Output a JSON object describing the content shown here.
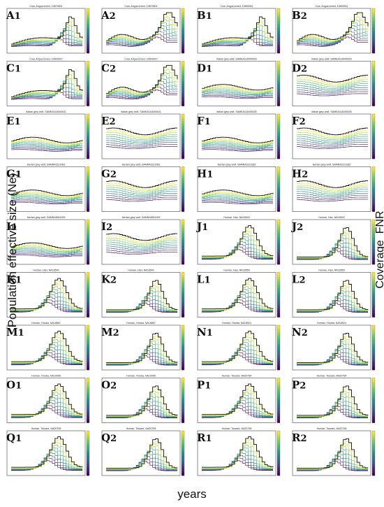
{
  "figure": {
    "y_axis_label": "Population effective size (Ne)",
    "x_axis_label": "years",
    "colorbar_label": "Coverage_FNR",
    "colormap": [
      "#440154",
      "#3b528b",
      "#21918c",
      "#5ec962",
      "#fde725"
    ],
    "black_curve_color": "#111111"
  },
  "chart_data": [
    {
      "panel": "A1",
      "title": "Cow, Angus breed, 19879801",
      "type": "line",
      "profile": "cow"
    },
    {
      "panel": "A2",
      "title": "Cow, Angus breed, 19879801",
      "type": "line",
      "profile": "cow2"
    },
    {
      "panel": "B1",
      "title": "Cow, Angus breed, 19890911",
      "type": "line",
      "profile": "cow"
    },
    {
      "panel": "B2",
      "title": "Cow, Angus breed, 19890911",
      "type": "line",
      "profile": "cow2"
    },
    {
      "panel": "C1",
      "title": "Cow, Angus breed, 19909927",
      "type": "line",
      "profile": "cow"
    },
    {
      "panel": "C2",
      "title": "Cow, Angus breed, 19909927",
      "type": "line",
      "profile": "cow2"
    },
    {
      "panel": "D1",
      "title": "Italian grey wolf, SAMEA116045429",
      "type": "line",
      "profile": "wolf"
    },
    {
      "panel": "D2",
      "title": "Italian grey wolf, SAMEA116045429",
      "type": "line",
      "profile": "wolf2"
    },
    {
      "panel": "E1",
      "title": "Italian grey wolf, SAMEA116045431",
      "type": "line",
      "profile": "wolf"
    },
    {
      "panel": "E2",
      "title": "Italian grey wolf, SAMEA116045431",
      "type": "line",
      "profile": "wolf2"
    },
    {
      "panel": "F1",
      "title": "Italian grey wolf, SAMEA116045435",
      "type": "line",
      "profile": "wolf"
    },
    {
      "panel": "F2",
      "title": "Italian grey wolf, SAMEA116045435",
      "type": "line",
      "profile": "wolf2"
    },
    {
      "panel": "G1",
      "title": "Iberian grey wolf, SAMN43221081",
      "type": "line",
      "profile": "wolf"
    },
    {
      "panel": "G2",
      "title": "Iberian grey wolf, SAMN43221081",
      "type": "line",
      "profile": "wolf2"
    },
    {
      "panel": "H1",
      "title": "Iberian grey wolf, SAMN43221082",
      "type": "line",
      "profile": "wolf"
    },
    {
      "panel": "H2",
      "title": "Iberian grey wolf, SAMN43221082",
      "type": "line",
      "profile": "wolf2"
    },
    {
      "panel": "I1",
      "title": "Iberian grey wolf, SAMN04851099",
      "type": "line",
      "profile": "wolf"
    },
    {
      "panel": "I2",
      "title": "Iberian grey wolf, SAMN04851099",
      "type": "line",
      "profile": "wolf2"
    },
    {
      "panel": "J1",
      "title": "Human, Han, NA18543",
      "type": "line",
      "profile": "human"
    },
    {
      "panel": "J2",
      "title": "Human, Han, NA18543",
      "type": "line",
      "profile": "human2"
    },
    {
      "panel": "K1",
      "title": "Human, Han, NA18544",
      "type": "line",
      "profile": "human"
    },
    {
      "panel": "K2",
      "title": "Human, Han, NA18544",
      "type": "line",
      "profile": "human2"
    },
    {
      "panel": "L1",
      "title": "Human, Han, NA18559",
      "type": "line",
      "profile": "human"
    },
    {
      "panel": "L2",
      "title": "Human, Han, NA18559",
      "type": "line",
      "profile": "human2"
    },
    {
      "panel": "M1",
      "title": "Human, Yoruba, NA18867",
      "type": "line",
      "profile": "human"
    },
    {
      "panel": "M2",
      "title": "Human, Yoruba, NA18867",
      "type": "line",
      "profile": "human2"
    },
    {
      "panel": "N1",
      "title": "Human, Yoruba, NA18924",
      "type": "line",
      "profile": "human"
    },
    {
      "panel": "N2",
      "title": "Human, Yoruba, NA18924",
      "type": "line",
      "profile": "human2"
    },
    {
      "panel": "O1",
      "title": "Human, Yoruba, NA19096",
      "type": "line",
      "profile": "human"
    },
    {
      "panel": "O2",
      "title": "Human, Yoruba, NA19096",
      "type": "line",
      "profile": "human2"
    },
    {
      "panel": "P1",
      "title": "Human, Toscani, NA20754",
      "type": "line",
      "profile": "human"
    },
    {
      "panel": "P2",
      "title": "Human, Toscani, NA20754",
      "type": "line",
      "profile": "human2"
    },
    {
      "panel": "Q1",
      "title": "Human, Toscani, NA20759",
      "type": "line",
      "profile": "human"
    },
    {
      "panel": "Q2",
      "title": "Human, Toscani, NA20759",
      "type": "line",
      "profile": "human2"
    },
    {
      "panel": "R1",
      "title": "Human, Toscani, NA20798",
      "type": "line",
      "profile": "human"
    },
    {
      "panel": "R2",
      "title": "Human, Toscani, NA20798",
      "type": "line",
      "profile": "human2"
    }
  ]
}
